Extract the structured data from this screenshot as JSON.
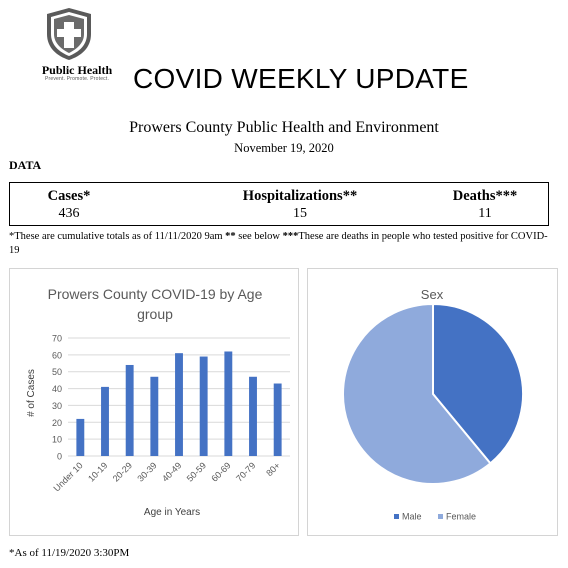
{
  "logo": {
    "name": "Public Health",
    "tagline": "Prevent. Promote. Protect."
  },
  "header": {
    "title": "COVID WEEKLY UPDATE"
  },
  "organization": "Prowers County Public Health and Environment",
  "report_date": "November 19, 2020",
  "data_heading": "DATA",
  "stats": [
    {
      "label": "Cases*",
      "value": "436"
    },
    {
      "label": "Hospitalizations**",
      "value": "15"
    },
    {
      "label": "Deaths***",
      "value": "11"
    }
  ],
  "footnote_parts": [
    "*These are cumulative totals as of 11/11/2020 9am ",
    "**",
    " see below ",
    "***",
    "These are deaths in people who tested positive for COVID-19"
  ],
  "as_of": "*As of 11/19/2020 3:30PM",
  "colors": {
    "bar": "#4472c4",
    "male": "#4472c4",
    "female": "#8faadc",
    "title_gray": "#595959"
  },
  "chart_data": [
    {
      "type": "bar",
      "title": "Prowers County COVID-19 by Age group",
      "title_lines": [
        "Prowers County COVID-19 by Age",
        "group"
      ],
      "xlabel": "Age in Years",
      "ylabel": "# of Cases",
      "categories": [
        "Under 10",
        "10-19",
        "20-29",
        "30-39",
        "40-49",
        "50-59",
        "60-69",
        "70-79",
        "80+"
      ],
      "values": [
        22,
        41,
        54,
        47,
        61,
        59,
        62,
        47,
        43
      ],
      "ylim": [
        0,
        70
      ],
      "yticks": [
        0,
        10,
        20,
        30,
        40,
        50,
        60,
        70
      ],
      "grid": true
    },
    {
      "type": "pie",
      "title": "Sex",
      "labels": [
        "Male",
        "Female"
      ],
      "values": [
        39,
        61
      ],
      "legend": "bottom"
    }
  ]
}
